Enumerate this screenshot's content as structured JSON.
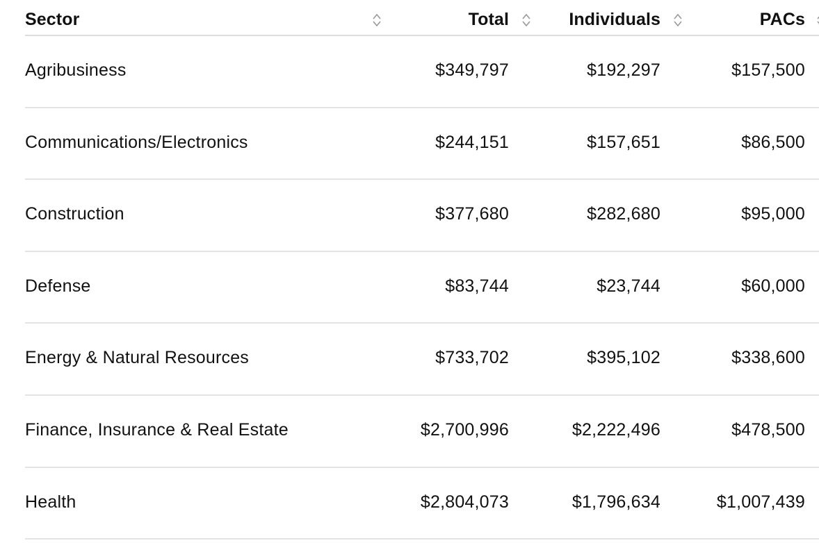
{
  "table": {
    "headers": {
      "sector": "Sector",
      "total": "Total",
      "individuals": "Individuals",
      "pacs": "PACs"
    },
    "icons": {
      "sort": "sort-updown-icon"
    },
    "rows": [
      {
        "sector": "Agribusiness",
        "total": "$349,797",
        "individuals": "$192,297",
        "pacs": "$157,500"
      },
      {
        "sector": "Communications/Electronics",
        "total": "$244,151",
        "individuals": "$157,651",
        "pacs": "$86,500"
      },
      {
        "sector": "Construction",
        "total": "$377,680",
        "individuals": "$282,680",
        "pacs": "$95,000"
      },
      {
        "sector": "Defense",
        "total": "$83,744",
        "individuals": "$23,744",
        "pacs": "$60,000"
      },
      {
        "sector": "Energy & Natural Resources",
        "total": "$733,702",
        "individuals": "$395,102",
        "pacs": "$338,600"
      },
      {
        "sector": "Finance, Insurance & Real Estate",
        "total": "$2,700,996",
        "individuals": "$2,222,496",
        "pacs": "$478,500"
      },
      {
        "sector": "Health",
        "total": "$2,804,073",
        "individuals": "$1,796,634",
        "pacs": "$1,007,439"
      }
    ]
  },
  "colors": {
    "text": "#111111",
    "row_divider": "#e3e3e3",
    "sort_icon": "#999999"
  }
}
